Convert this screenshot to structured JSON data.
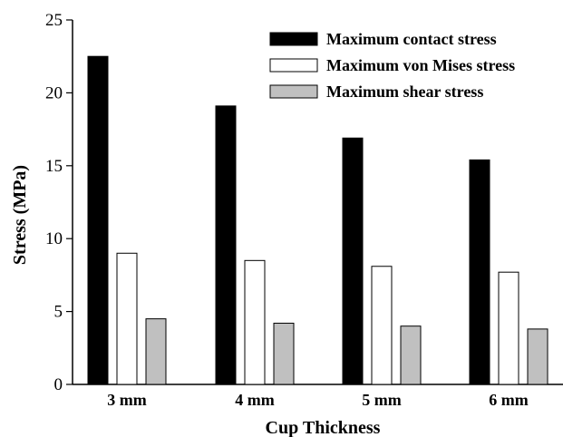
{
  "chart_data": {
    "type": "bar",
    "xlabel": "Cup Thickness",
    "ylabel": "Stress (MPa)",
    "ylim": [
      0,
      25
    ],
    "yticks": [
      0,
      5,
      10,
      15,
      20,
      25
    ],
    "categories": [
      "3 mm",
      "4 mm",
      "5 mm",
      "6 mm"
    ],
    "series": [
      {
        "name": "Maximum contact stress",
        "color": "#000000",
        "values": [
          22.5,
          19.1,
          16.9,
          15.4
        ]
      },
      {
        "name": "Maximum von Mises stress",
        "color": "#ffffff",
        "values": [
          9.0,
          8.5,
          8.1,
          7.7
        ]
      },
      {
        "name": "Maximum shear stress",
        "color": "#c0c0c0",
        "values": [
          4.5,
          4.2,
          4.0,
          3.8
        ]
      }
    ],
    "grid": false,
    "legend_position": "top-right"
  }
}
